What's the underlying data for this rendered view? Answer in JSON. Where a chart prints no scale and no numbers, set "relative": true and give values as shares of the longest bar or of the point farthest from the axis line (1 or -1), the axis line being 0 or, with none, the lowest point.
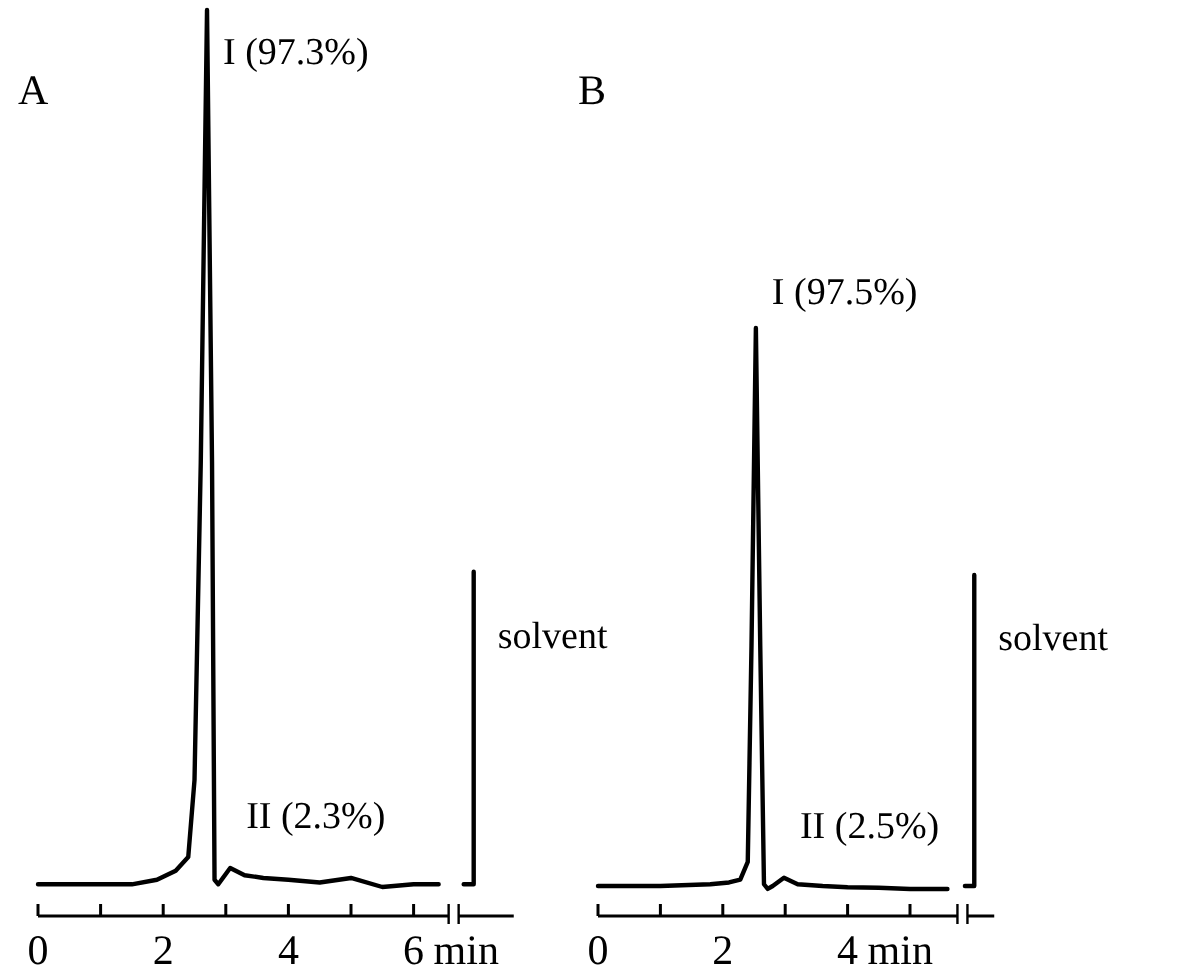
{
  "chart_data": [
    {
      "type": "line",
      "title": "A",
      "xlabel": "min",
      "relative": true,
      "xlim": [
        0,
        7.6
      ],
      "xticks": [
        0,
        {
          "value": 1,
          "label": null
        },
        2,
        {
          "value": 3,
          "label": null
        },
        4,
        {
          "value": 5,
          "label": null
        },
        6
      ],
      "series": [
        {
          "color": "#000000",
          "x": [
            0,
            1.5,
            1.9,
            2.2,
            2.4,
            2.5,
            2.6,
            2.7,
            2.78,
            2.82,
            2.88,
            3.07,
            3.3,
            3.6,
            4.0,
            4.5,
            5.0,
            5.5,
            6.0,
            6.4
          ],
          "values": [
            0.035,
            0.035,
            0.04,
            0.05,
            0.065,
            0.15,
            0.5,
            1,
            0.5,
            0.04,
            0.035,
            0.053,
            0.045,
            0.042,
            0.04,
            0.037,
            0.042,
            0.032,
            0.035,
            0.035
          ]
        },
        {
          "name": "solvent",
          "color": "#000000",
          "x": [
            6.8,
            6.96,
            6.96
          ],
          "values": [
            0.035,
            0.035,
            0.38
          ]
        }
      ],
      "annotations": [
        {
          "text": "I (97.3%)",
          "x": 2.7,
          "y": 1
        },
        {
          "text": "II (2.3%)",
          "x": 3.07,
          "y": 0.053
        }
      ]
    },
    {
      "type": "line",
      "title": "B",
      "xlabel": "min",
      "relative": true,
      "xlim": [
        0,
        6.35
      ],
      "xticks": [
        0,
        {
          "value": 1,
          "label": null
        },
        2,
        {
          "value": 3,
          "label": null
        },
        4,
        {
          "value": 5,
          "label": null
        }
      ],
      "series": [
        {
          "color": "#000000",
          "x": [
            0,
            1.0,
            1.8,
            2.1,
            2.28,
            2.4,
            2.46,
            2.53,
            2.6,
            2.66,
            2.72,
            2.8,
            2.98,
            3.2,
            3.6,
            4.0,
            4.5,
            5.0,
            5.6
          ],
          "values": [
            0.051,
            0.051,
            0.054,
            0.057,
            0.062,
            0.092,
            0.46,
            1,
            0.46,
            0.054,
            0.046,
            0.051,
            0.065,
            0.054,
            0.051,
            0.049,
            0.048,
            0.046,
            0.046
          ]
        },
        {
          "name": "solvent",
          "color": "#000000",
          "x": [
            5.88,
            6.03,
            6.03
          ],
          "values": [
            0.051,
            0.051,
            0.58
          ]
        }
      ],
      "annotations": [
        {
          "text": "I (97.5%)",
          "x": 2.53,
          "y": 1
        },
        {
          "text": "II (2.5%)",
          "x": 2.98,
          "y": 0.065
        }
      ]
    }
  ]
}
